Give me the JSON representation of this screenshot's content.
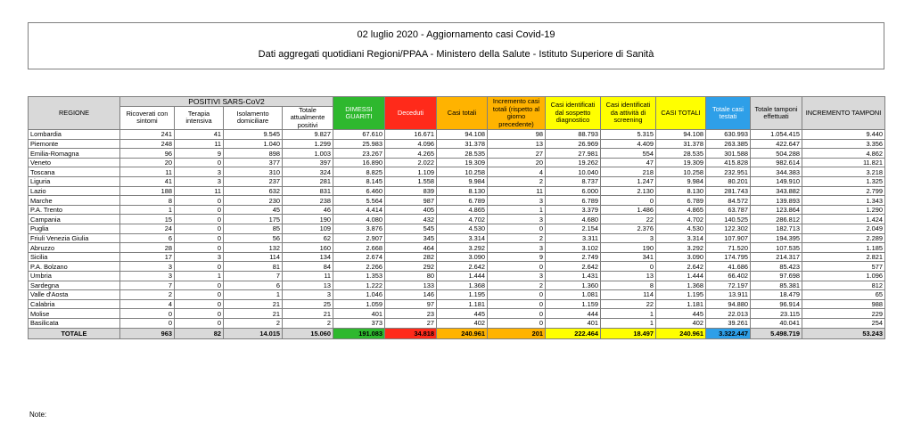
{
  "header": {
    "title": "02 luglio 2020 - Aggiornamento casi Covid-19",
    "subtitle": "Dati aggregati quotidiani Regioni/PPAA - Ministero della Salute - Istituto Superiore di Sanità"
  },
  "table": {
    "region_header": "REGIONE",
    "group_header": "POSITIVI SARS-CoV2",
    "columns": [
      "Ricoverati con sintomi",
      "Terapia intensiva",
      "Isolamento domiciliare",
      "Totale attualmente positivi",
      "DIMESSI GUARITI",
      "Deceduti",
      "Casi totali",
      "Incremento casi totali (rispetto al giorno precedente)",
      "Casi identificati dal sospetto diagnostico",
      "Casi identificati da attività di screening",
      "CASI TOTALI",
      "Totale casi testati",
      "Totale tamponi effettuati",
      "INCREMENTO TAMPONI"
    ],
    "rows": [
      [
        "Lombardia",
        "241",
        "41",
        "9.545",
        "9.827",
        "67.610",
        "16.671",
        "94.108",
        "98",
        "88.793",
        "5.315",
        "94.108",
        "630.993",
        "1.054.415",
        "9.440"
      ],
      [
        "Piemonte",
        "248",
        "11",
        "1.040",
        "1.299",
        "25.983",
        "4.096",
        "31.378",
        "13",
        "26.969",
        "4.409",
        "31.378",
        "263.385",
        "422.647",
        "3.356"
      ],
      [
        "Emilia-Romagna",
        "96",
        "9",
        "898",
        "1.003",
        "23.267",
        "4.265",
        "28.535",
        "27",
        "27.981",
        "554",
        "28.535",
        "301.588",
        "504.288",
        "4.862"
      ],
      [
        "Veneto",
        "20",
        "0",
        "377",
        "397",
        "16.890",
        "2.022",
        "19.309",
        "20",
        "19.262",
        "47",
        "19.309",
        "415.828",
        "982.614",
        "11.821"
      ],
      [
        "Toscana",
        "11",
        "3",
        "310",
        "324",
        "8.825",
        "1.109",
        "10.258",
        "4",
        "10.040",
        "218",
        "10.258",
        "232.951",
        "344.383",
        "3.218"
      ],
      [
        "Liguria",
        "41",
        "3",
        "237",
        "281",
        "8.145",
        "1.558",
        "9.984",
        "2",
        "8.737",
        "1.247",
        "9.984",
        "80.201",
        "149.910",
        "1.325"
      ],
      [
        "Lazio",
        "188",
        "11",
        "632",
        "831",
        "6.460",
        "839",
        "8.130",
        "11",
        "6.000",
        "2.130",
        "8.130",
        "281.743",
        "343.882",
        "2.799"
      ],
      [
        "Marche",
        "8",
        "0",
        "230",
        "238",
        "5.564",
        "987",
        "6.789",
        "3",
        "6.789",
        "0",
        "6.789",
        "84.572",
        "139.893",
        "1.343"
      ],
      [
        "P.A. Trento",
        "1",
        "0",
        "45",
        "46",
        "4.414",
        "405",
        "4.865",
        "1",
        "3.379",
        "1.486",
        "4.865",
        "63.787",
        "123.864",
        "1.290"
      ],
      [
        "Campania",
        "15",
        "0",
        "175",
        "190",
        "4.080",
        "432",
        "4.702",
        "3",
        "4.680",
        "22",
        "4.702",
        "140.525",
        "286.812",
        "1.424"
      ],
      [
        "Puglia",
        "24",
        "0",
        "85",
        "109",
        "3.876",
        "545",
        "4.530",
        "0",
        "2.154",
        "2.376",
        "4.530",
        "122.302",
        "182.713",
        "2.049"
      ],
      [
        "Friuli Venezia Giulia",
        "6",
        "0",
        "56",
        "62",
        "2.907",
        "345",
        "3.314",
        "2",
        "3.311",
        "3",
        "3.314",
        "107.907",
        "194.395",
        "2.289"
      ],
      [
        "Abruzzo",
        "28",
        "0",
        "132",
        "160",
        "2.668",
        "464",
        "3.292",
        "3",
        "3.102",
        "190",
        "3.292",
        "71.520",
        "107.535",
        "1.185"
      ],
      [
        "Sicilia",
        "17",
        "3",
        "114",
        "134",
        "2.674",
        "282",
        "3.090",
        "9",
        "2.749",
        "341",
        "3.090",
        "174.795",
        "214.317",
        "2.821"
      ],
      [
        "P.A. Bolzano",
        "3",
        "0",
        "81",
        "84",
        "2.266",
        "292",
        "2.642",
        "0",
        "2.642",
        "0",
        "2.642",
        "41.686",
        "85.423",
        "577"
      ],
      [
        "Umbria",
        "3",
        "1",
        "7",
        "11",
        "1.353",
        "80",
        "1.444",
        "3",
        "1.431",
        "13",
        "1.444",
        "66.402",
        "97.698",
        "1.096"
      ],
      [
        "Sardegna",
        "7",
        "0",
        "6",
        "13",
        "1.222",
        "133",
        "1.368",
        "2",
        "1.360",
        "8",
        "1.368",
        "72.197",
        "85.381",
        "812"
      ],
      [
        "Valle d'Aosta",
        "2",
        "0",
        "1",
        "3",
        "1.046",
        "146",
        "1.195",
        "0",
        "1.081",
        "114",
        "1.195",
        "13.911",
        "18.479",
        "65"
      ],
      [
        "Calabria",
        "4",
        "0",
        "21",
        "25",
        "1.059",
        "97",
        "1.181",
        "0",
        "1.159",
        "22",
        "1.181",
        "94.880",
        "96.914",
        "988"
      ],
      [
        "Molise",
        "0",
        "0",
        "21",
        "21",
        "401",
        "23",
        "445",
        "0",
        "444",
        "1",
        "445",
        "22.013",
        "23.115",
        "229"
      ],
      [
        "Basilicata",
        "0",
        "0",
        "2",
        "2",
        "373",
        "27",
        "402",
        "0",
        "401",
        "1",
        "402",
        "39.261",
        "40.041",
        "254"
      ]
    ],
    "total": [
      "TOTALE",
      "963",
      "82",
      "14.015",
      "15.060",
      "191.083",
      "34.818",
      "240.961",
      "201",
      "222.464",
      "18.497",
      "240.961",
      "3.322.447",
      "5.498.719",
      "53.243"
    ]
  },
  "note_label": "Note:",
  "colors": {
    "guariti": "#2eb82e",
    "deceduti": "#ff2a1a",
    "casi_totali": "#ffb300",
    "identificati": "#ffff00",
    "testati": "#2e9fe8",
    "header_grey": "#d9d9d9"
  }
}
